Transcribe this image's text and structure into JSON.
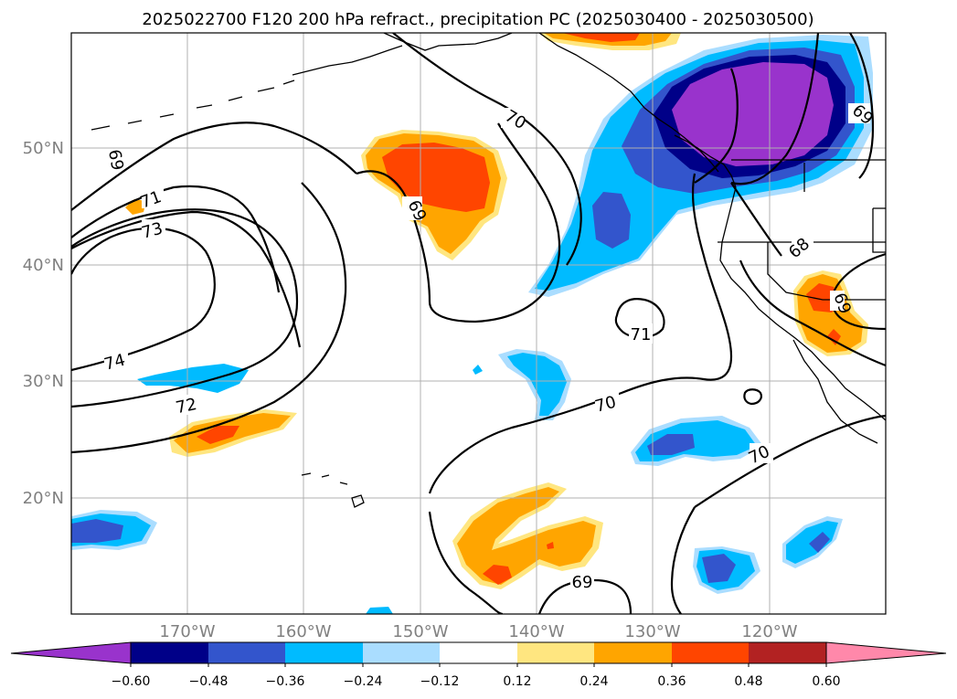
{
  "title": "2025022700 F120 200 hPa refract., precipitation PC (2025030400 - 2025030500)",
  "map": {
    "lon_labels": [
      "170°W",
      "160°W",
      "150°W",
      "140°W",
      "130°W",
      "120°W"
    ],
    "lat_labels": [
      "50°N",
      "40°N",
      "30°N",
      "20°N"
    ],
    "contour_labels": [
      "69",
      "71",
      "73",
      "74",
      "72",
      "70",
      "69",
      "71",
      "70",
      "70",
      "69",
      "68",
      "69",
      "69"
    ],
    "colors": {
      "neg_060": "#9933cc",
      "neg_048": "#000088",
      "neg_036": "#3355cc",
      "neg_024": "#00bbff",
      "neg_012": "#aaddff",
      "pos_012": "#ffe680",
      "pos_024": "#ffa500",
      "pos_036": "#ff4500",
      "pos_048": "#b22222",
      "pos_060": "#ff88aa"
    }
  },
  "colorbar": {
    "ticks": [
      "−0.60",
      "−0.48",
      "−0.36",
      "−0.24",
      "−0.12",
      "0.12",
      "0.24",
      "0.36",
      "0.48",
      "0.60"
    ],
    "colors": [
      "#9933cc",
      "#000088",
      "#3355cc",
      "#00bbff",
      "#aaddff",
      "#ffffff",
      "#ffe680",
      "#ffa500",
      "#ff4500",
      "#b22222",
      "#ff88aa"
    ]
  }
}
